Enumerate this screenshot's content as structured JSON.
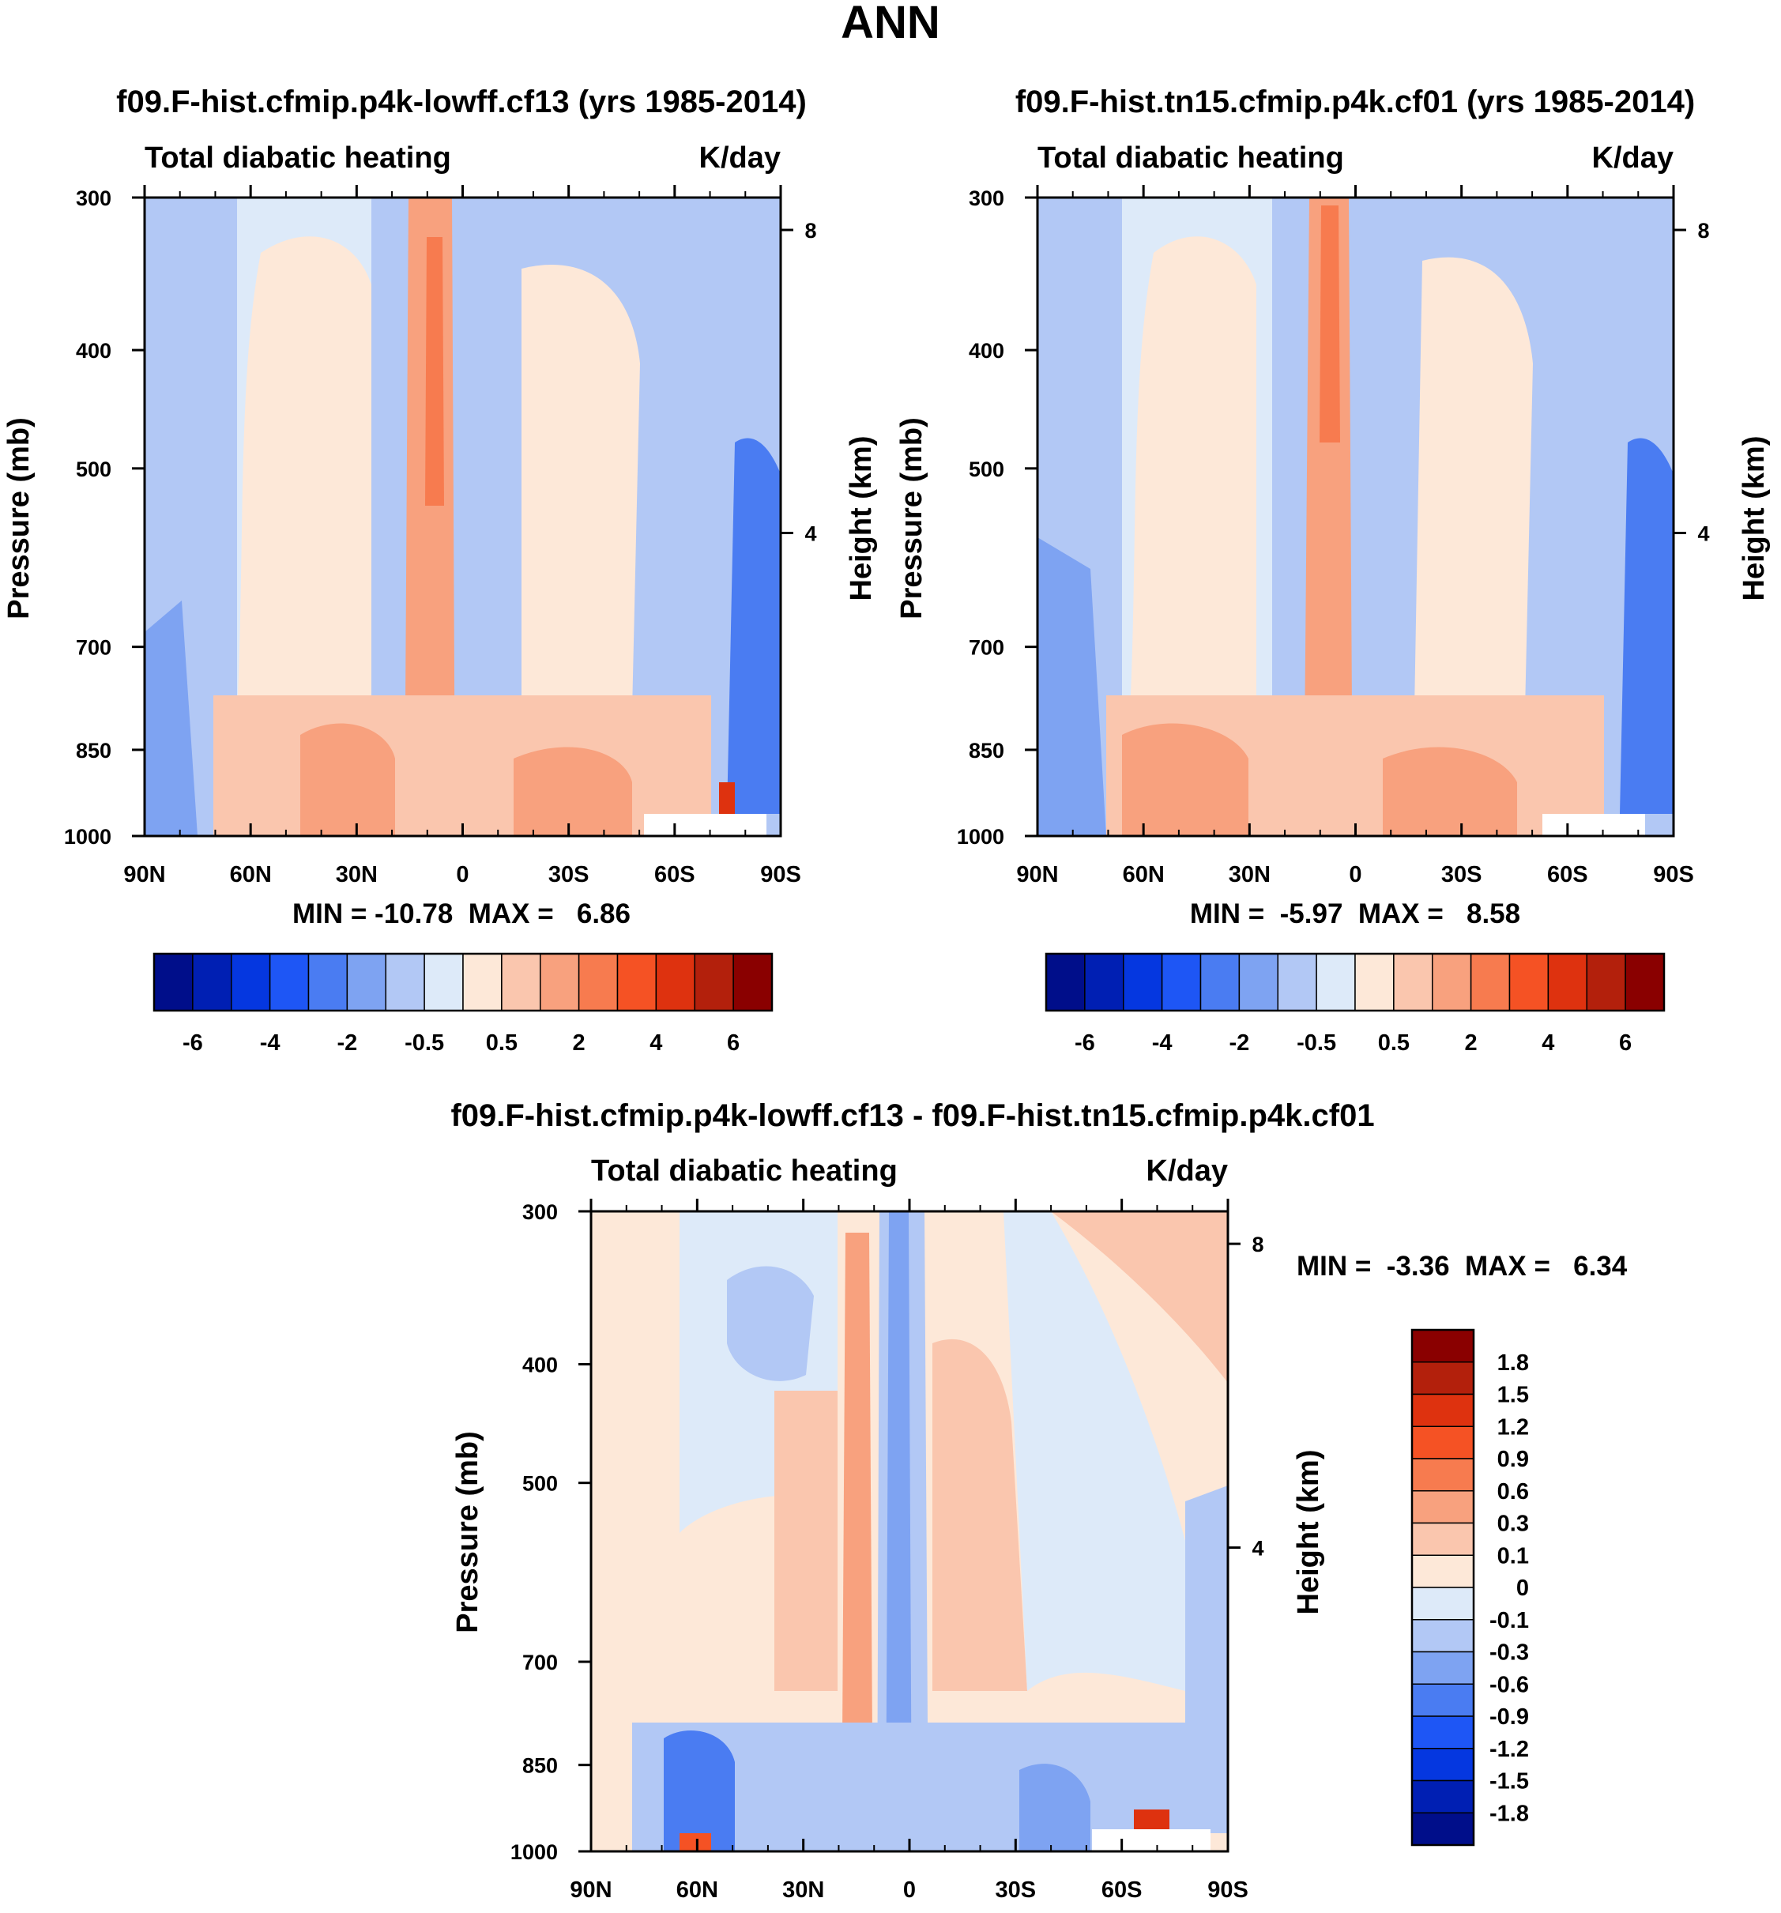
{
  "page_title": "ANN",
  "chart_data": [
    {
      "type": "heatmap",
      "title": "f09.F-hist.cfmip.p4k-lowff.cf13 (yrs 1985-2014)",
      "left_string": "Total diabatic heating",
      "right_string": "K/day",
      "ylabel": "Pressure (mb)",
      "ylabel_right": "Height (km)",
      "stats": "MIN = -10.78  MAX =   6.86",
      "x_ticks": [
        "90N",
        "60N",
        "30N",
        "0",
        "30S",
        "60S",
        "90S"
      ],
      "y_ticks": [
        300,
        400,
        500,
        700,
        850,
        1000
      ],
      "height_ticks": [
        8,
        4
      ],
      "ylim": [
        1000,
        300
      ],
      "y_scale": "log",
      "colorbar_ticks": [
        "-6",
        "-4",
        "-2",
        "-0.5",
        "0.5",
        "2",
        "4",
        "6"
      ],
      "colorbar_orientation": "horizontal",
      "colors": [
        "#000e8a",
        "#001fb3",
        "#0537e0",
        "#1e56f5",
        "#4a7cf2",
        "#7ea3f2",
        "#b2c8f5",
        "#ddeaf9",
        "#fde8d8",
        "#fac6ae",
        "#f8a17e",
        "#f77b4f",
        "#f55224",
        "#de320f",
        "#b3200c",
        "#8a0000"
      ]
    },
    {
      "type": "heatmap",
      "title": "f09.F-hist.tn15.cfmip.p4k.cf01 (yrs 1985-2014)",
      "left_string": "Total diabatic heating",
      "right_string": "K/day",
      "ylabel": "Pressure (mb)",
      "ylabel_right": "Height (km)",
      "stats": "MIN =  -5.97  MAX =   8.58",
      "x_ticks": [
        "90N",
        "60N",
        "30N",
        "0",
        "30S",
        "60S",
        "90S"
      ],
      "y_ticks": [
        300,
        400,
        500,
        700,
        850,
        1000
      ],
      "height_ticks": [
        8,
        4
      ],
      "ylim": [
        1000,
        300
      ],
      "y_scale": "log",
      "colorbar_ticks": [
        "-6",
        "-4",
        "-2",
        "-0.5",
        "0.5",
        "2",
        "4",
        "6"
      ],
      "colorbar_orientation": "horizontal"
    },
    {
      "type": "heatmap",
      "title": "f09.F-hist.cfmip.p4k-lowff.cf13 - f09.F-hist.tn15.cfmip.p4k.cf01",
      "left_string": "Total diabatic heating",
      "right_string": "K/day",
      "ylabel": "Pressure (mb)",
      "ylabel_right": "Height (km)",
      "stats": "MIN =  -3.36  MAX =   6.34",
      "x_ticks": [
        "90N",
        "60N",
        "30N",
        "0",
        "30S",
        "60S",
        "90S"
      ],
      "y_ticks": [
        300,
        400,
        500,
        700,
        850,
        1000
      ],
      "height_ticks": [
        8,
        4
      ],
      "ylim": [
        1000,
        300
      ],
      "y_scale": "log",
      "colorbar_ticks": [
        "1.8",
        "1.5",
        "1.2",
        "0.9",
        "0.6",
        "0.3",
        "0.1",
        "0",
        "-0.1",
        "-0.3",
        "-0.6",
        "-0.9",
        "-1.2",
        "-1.5",
        "-1.8"
      ],
      "colorbar_orientation": "vertical"
    }
  ]
}
